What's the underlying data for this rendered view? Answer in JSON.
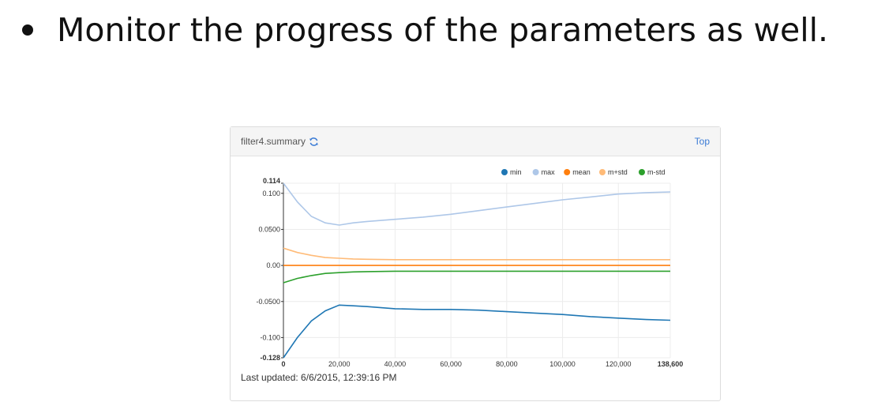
{
  "slide": {
    "bullet_text": "Monitor the progress of the parameters as well."
  },
  "panel": {
    "title": "filter4.summary",
    "top_label": "Top",
    "last_updated": "Last updated: 6/6/2015, 12:39:16 PM",
    "refresh_icon": "refresh-icon"
  },
  "chart_data": {
    "type": "line",
    "title": "",
    "xlabel": "",
    "ylabel": "",
    "xlim": [
      0,
      138600
    ],
    "ylim": [
      -0.128,
      0.114
    ],
    "x_ticks": [
      "0",
      "20,000",
      "40,000",
      "60,000",
      "80,000",
      "100,000",
      "120,000",
      "138,600"
    ],
    "x_tick_values": [
      0,
      20000,
      40000,
      60000,
      80000,
      100000,
      120000,
      138600
    ],
    "y_ticks": [
      "0.114",
      "0.100",
      "0.0500",
      "0.00",
      "-0.0500",
      "-0.100",
      "-0.128"
    ],
    "y_tick_values": [
      0.114,
      0.1,
      0.05,
      0.0,
      -0.05,
      -0.1,
      -0.128
    ],
    "grid": true,
    "legend_position": "top-right",
    "x": [
      0,
      5000,
      10000,
      15000,
      20000,
      25000,
      30000,
      40000,
      50000,
      60000,
      70000,
      80000,
      90000,
      100000,
      110000,
      120000,
      130000,
      138600
    ],
    "series": [
      {
        "name": "min",
        "color": "#1f77b4",
        "values": [
          -0.128,
          -0.1,
          -0.077,
          -0.063,
          -0.055,
          -0.056,
          -0.057,
          -0.06,
          -0.061,
          -0.061,
          -0.062,
          -0.064,
          -0.066,
          -0.068,
          -0.071,
          -0.073,
          -0.075,
          -0.076
        ]
      },
      {
        "name": "max",
        "color": "#aec7e8",
        "values": [
          0.114,
          0.088,
          0.068,
          0.059,
          0.056,
          0.059,
          0.061,
          0.064,
          0.067,
          0.071,
          0.076,
          0.081,
          0.086,
          0.091,
          0.095,
          0.099,
          0.101,
          0.102
        ]
      },
      {
        "name": "mean",
        "color": "#ff7f0e",
        "values": [
          0.0,
          0.0,
          0.0,
          0.0,
          0.0,
          0.0,
          0.0,
          0.0,
          0.0,
          0.0,
          0.0,
          0.0,
          0.0,
          0.0,
          0.0,
          0.0,
          0.0,
          0.0
        ]
      },
      {
        "name": "m+std",
        "color": "#ffbb78",
        "values": [
          0.024,
          0.018,
          0.014,
          0.011,
          0.01,
          0.009,
          0.0085,
          0.008,
          0.008,
          0.008,
          0.008,
          0.008,
          0.008,
          0.008,
          0.008,
          0.008,
          0.008,
          0.008
        ]
      },
      {
        "name": "m-std",
        "color": "#2ca02c",
        "values": [
          -0.024,
          -0.018,
          -0.014,
          -0.011,
          -0.01,
          -0.009,
          -0.0085,
          -0.008,
          -0.008,
          -0.008,
          -0.008,
          -0.008,
          -0.008,
          -0.008,
          -0.008,
          -0.008,
          -0.008,
          -0.008
        ]
      }
    ]
  }
}
